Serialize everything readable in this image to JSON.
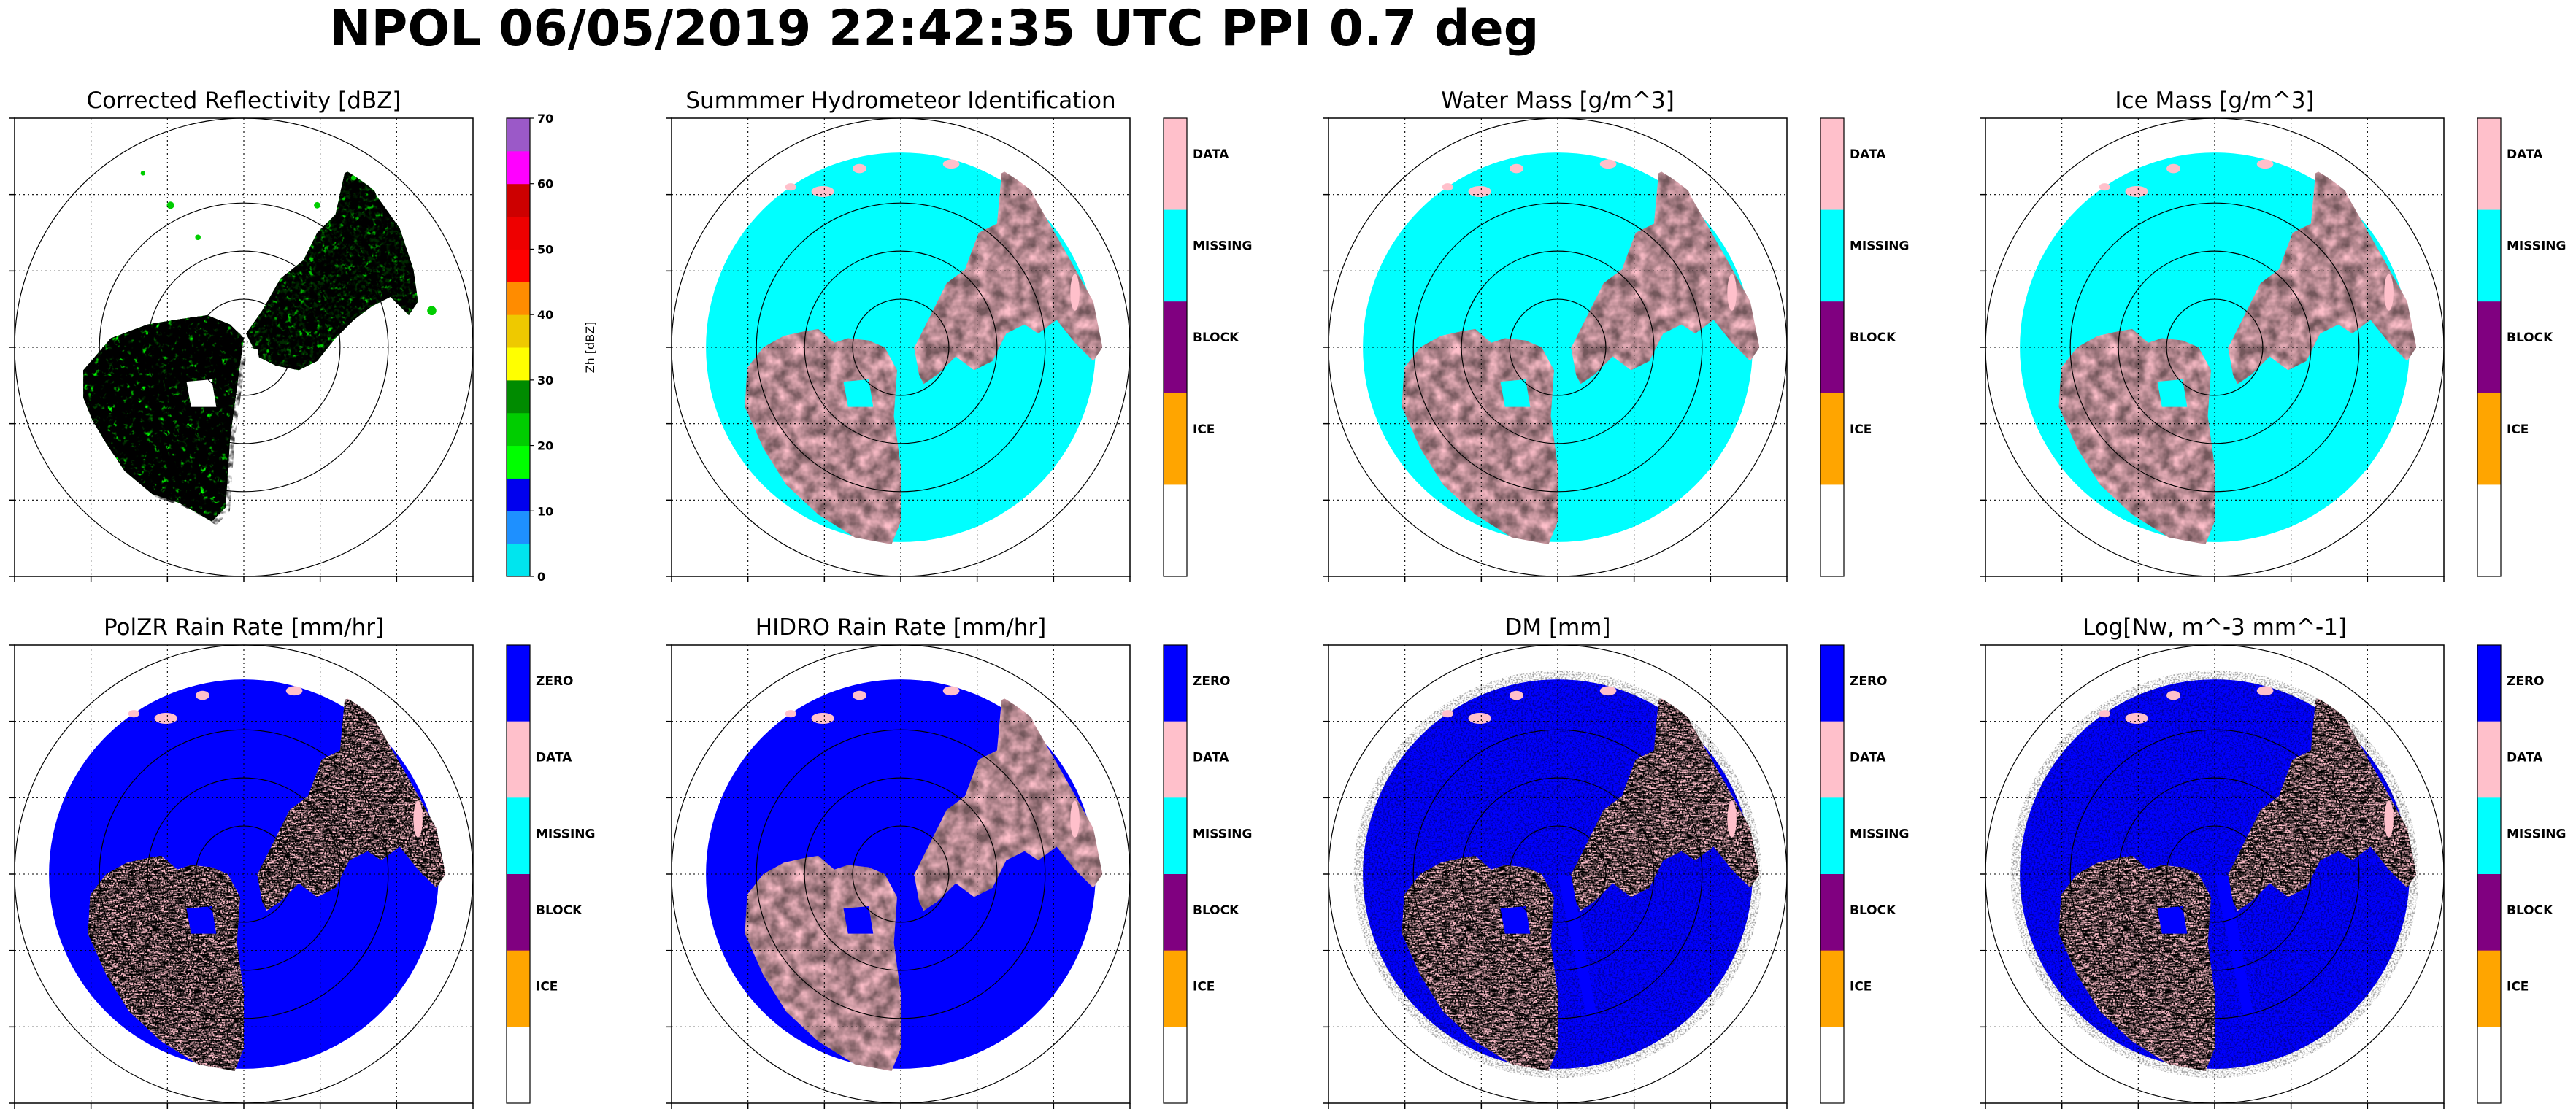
{
  "suptitle": "NPOL 06/05/2019 22:42:35 UTC PPI 0.7 deg",
  "colors": {
    "data": "#ffc0cb",
    "missing": "#00ffff",
    "block": "#800080",
    "ice": "#ffa500",
    "zero": "#0000ff",
    "empty": "#ffffff"
  },
  "chart_data": [
    {
      "type": "heatmap",
      "title": "Corrected Reflectivity [dBZ]",
      "colorbar": {
        "kind": "continuous",
        "label": "Zh [dBZ]",
        "ticks": [
          "0",
          "10",
          "20",
          "30",
          "40",
          "50",
          "60",
          "70"
        ],
        "range": [
          0,
          70
        ],
        "colors": [
          "#00e5ee",
          "#1e90ff",
          "#0000ee",
          "#00ff00",
          "#00cd00",
          "#008b00",
          "#ffff00",
          "#eec900",
          "#ff8c00",
          "#ff0000",
          "#ee0000",
          "#cd0000",
          "#ff00ff",
          "#9b59c8"
        ]
      },
      "field": "reflectivity"
    },
    {
      "type": "heatmap",
      "title": "Summmer Hydrometeor Identification",
      "colorbar": {
        "kind": "categorical",
        "categories": [
          "DATA",
          "MISSING",
          "BLOCK",
          "ICE",
          ""
        ]
      },
      "field": "hid"
    },
    {
      "type": "heatmap",
      "title": "Water Mass [g/m^3]",
      "colorbar": {
        "kind": "categorical",
        "categories": [
          "DATA",
          "MISSING",
          "BLOCK",
          "ICE",
          ""
        ]
      },
      "field": "water"
    },
    {
      "type": "heatmap",
      "title": "Ice Mass [g/m^3]",
      "colorbar": {
        "kind": "categorical",
        "categories": [
          "DATA",
          "MISSING",
          "BLOCK",
          "ICE",
          ""
        ]
      },
      "field": "ice"
    },
    {
      "type": "heatmap",
      "title": "PolZR Rain Rate [mm/hr]",
      "colorbar": {
        "kind": "categorical",
        "categories": [
          "ZERO",
          "DATA",
          "MISSING",
          "BLOCK",
          "ICE",
          ""
        ]
      },
      "field": "polzr"
    },
    {
      "type": "heatmap",
      "title": "HIDRO Rain Rate [mm/hr]",
      "colorbar": {
        "kind": "categorical",
        "categories": [
          "ZERO",
          "DATA",
          "MISSING",
          "BLOCK",
          "ICE",
          ""
        ]
      },
      "field": "hidro"
    },
    {
      "type": "heatmap",
      "title": "DM [mm]",
      "colorbar": {
        "kind": "categorical",
        "categories": [
          "ZERO",
          "DATA",
          "MISSING",
          "BLOCK",
          "ICE",
          ""
        ]
      },
      "field": "dm"
    },
    {
      "type": "heatmap",
      "title": "Log[Nw, m^-3 mm^-1]",
      "colorbar": {
        "kind": "categorical",
        "categories": [
          "ZERO",
          "DATA",
          "MISSING",
          "BLOCK",
          "ICE",
          ""
        ]
      },
      "field": "nw"
    }
  ]
}
